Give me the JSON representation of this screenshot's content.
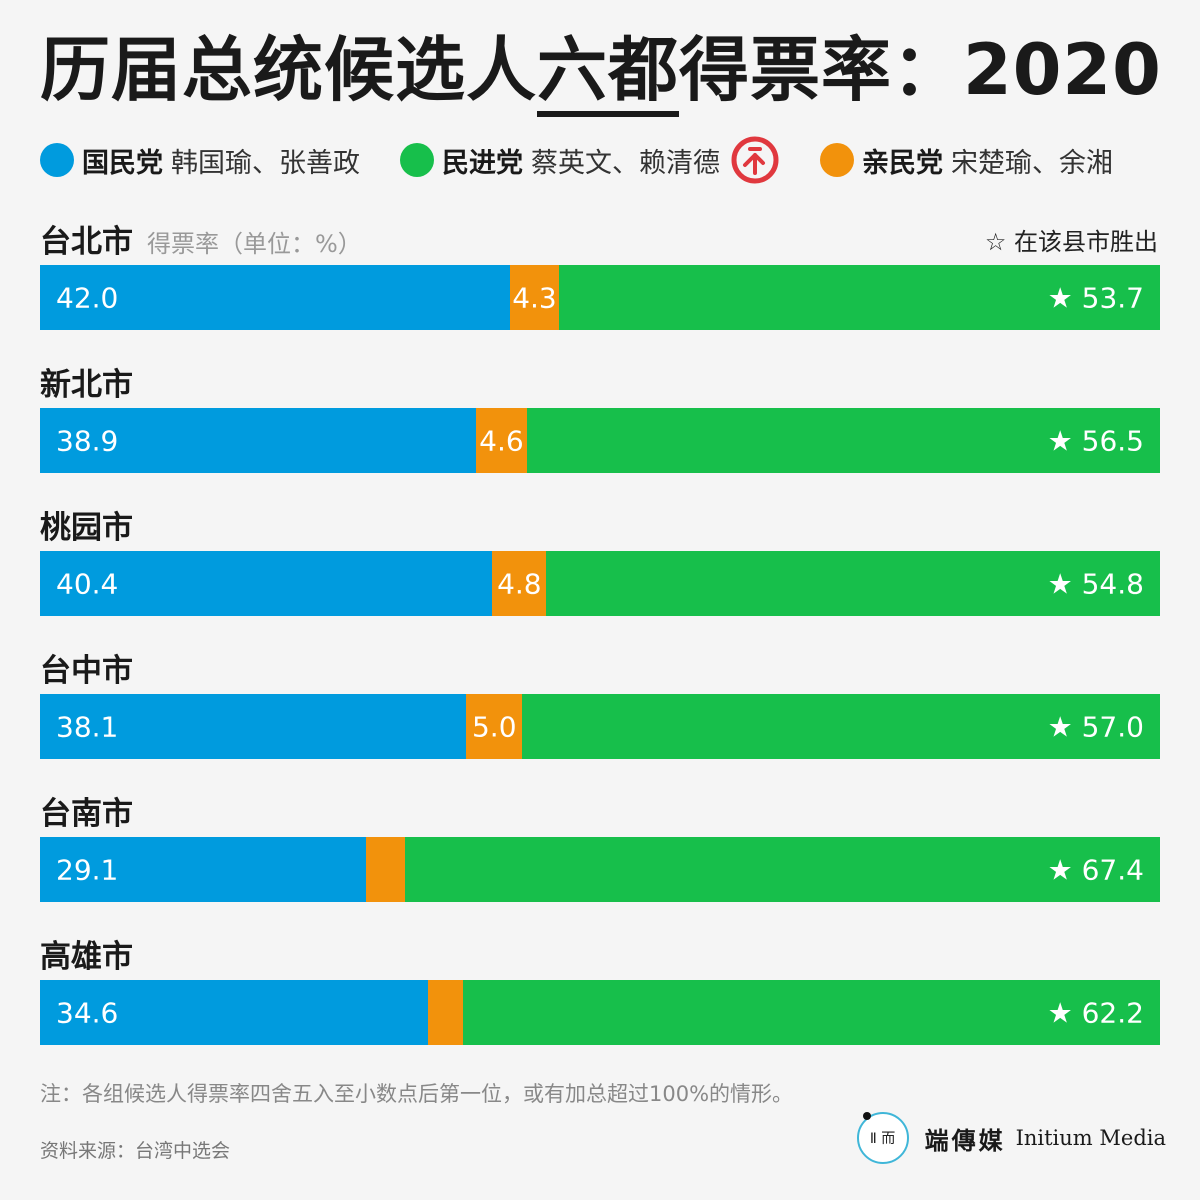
{
  "title_pre": "历届总统候选人",
  "title_hl": "六都",
  "title_post": "得票率：2020",
  "legend": [
    {
      "party": "国民党",
      "candidates": "韩国瑜、张善政",
      "color": "#009bde"
    },
    {
      "party": "民进党",
      "candidates": "蔡英文、赖清德",
      "color": "#17bf4b",
      "winner": true
    },
    {
      "party": "亲民党",
      "candidates": "宋楚瑜、余湘",
      "color": "#f2920c"
    }
  ],
  "unit_label": "得票率（单位：%）",
  "star_note": "☆ 在该县市胜出",
  "star_glyph": "★",
  "chart_data": {
    "type": "bar",
    "stacked": true,
    "orientation": "horizontal",
    "categories": [
      "台北市",
      "新北市",
      "桃园市",
      "台中市",
      "台南市",
      "高雄市"
    ],
    "series": [
      {
        "name": "国民党",
        "values": [
          42.0,
          38.9,
          40.4,
          38.1,
          29.1,
          34.6
        ],
        "color": "#009bde"
      },
      {
        "name": "亲民党",
        "values": [
          4.3,
          4.6,
          4.8,
          5.0,
          3.5,
          3.2
        ],
        "color": "#f2920c",
        "shown_labels": [
          true,
          true,
          true,
          true,
          false,
          false
        ]
      },
      {
        "name": "民进党",
        "values": [
          53.7,
          56.5,
          54.8,
          57.0,
          67.4,
          62.2
        ],
        "color": "#17bf4b",
        "winner": [
          true,
          true,
          true,
          true,
          true,
          true
        ]
      }
    ],
    "xlim": [
      0,
      100
    ]
  },
  "footnote": "注：各组候选人得票率四舍五入至小数点后第一位，或有加总超过100%的情形。",
  "source": "资料来源：台湾中选会",
  "brand": {
    "logo_text": "Ⅱ 而",
    "cn": "端傳媒",
    "en": "Initium Media"
  }
}
